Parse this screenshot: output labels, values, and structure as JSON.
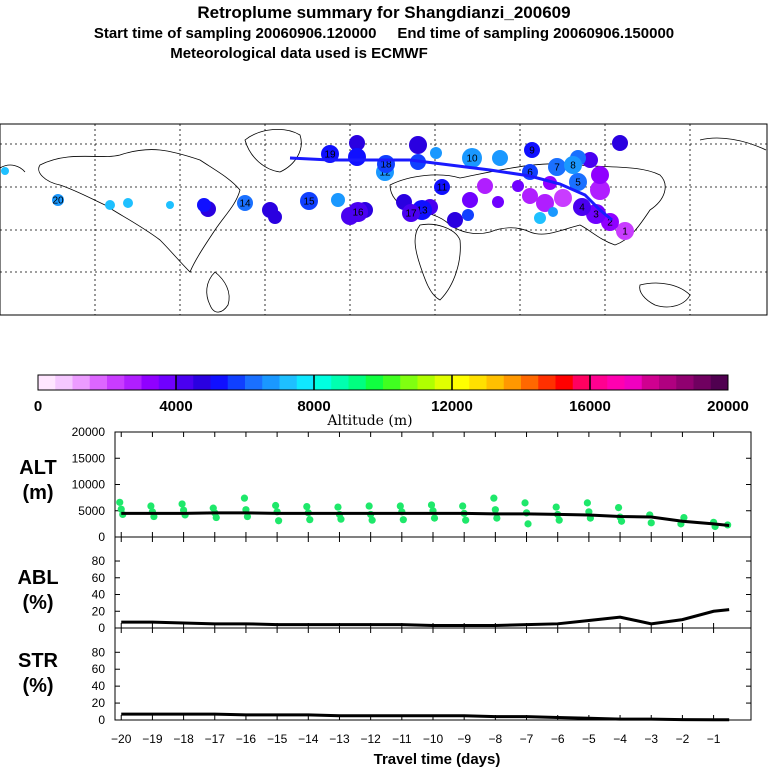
{
  "header": {
    "title": "Retroplume summary for Shangdianzi_200609",
    "sampling_line": "Start time of sampling 20060906.120000     End time of sampling 20060906.150000",
    "met_line": "Meteorological data used is ECMWF"
  },
  "colorbar": {
    "ticks": [
      "0",
      "4000",
      "8000",
      "12000",
      "16000",
      "20000"
    ],
    "label": "Altitude (m)",
    "range": [
      0,
      20000
    ],
    "colors": [
      "#ffe6ff",
      "#f5c8ff",
      "#ec9cff",
      "#dd66ff",
      "#c93cff",
      "#b01eff",
      "#9000ff",
      "#7000ff",
      "#4a00f0",
      "#2a00e0",
      "#1010ff",
      "#1040ff",
      "#1a70ff",
      "#1a98ff",
      "#1ec0ff",
      "#10e8ff",
      "#00ffe0",
      "#00ffb0",
      "#00ff80",
      "#10ff40",
      "#40ff20",
      "#80ff10",
      "#b0ff00",
      "#e0ff00",
      "#ffff00",
      "#ffe000",
      "#ffc000",
      "#ff9800",
      "#ff6800",
      "#ff3000",
      "#ff0000",
      "#ff0060",
      "#ff0090",
      "#ff00b0",
      "#f000c0",
      "#d00090",
      "#b00080",
      "#900070",
      "#700060",
      "#500050"
    ]
  },
  "map": {
    "labels": [
      {
        "n": "1",
        "alt": 2200
      },
      {
        "n": "2",
        "alt": 3000
      },
      {
        "n": "3",
        "alt": 3600
      },
      {
        "n": "4",
        "alt": 4000
      },
      {
        "n": "5",
        "alt": 6300
      },
      {
        "n": "6",
        "alt": 5600
      },
      {
        "n": "7",
        "alt": 6000
      },
      {
        "n": "8",
        "alt": 6500
      },
      {
        "n": "9",
        "alt": 5300
      },
      {
        "n": "10",
        "alt": 6900
      },
      {
        "n": "11",
        "alt": 5200
      },
      {
        "n": "12",
        "alt": 6600
      },
      {
        "n": "13",
        "alt": 5000
      },
      {
        "n": "14",
        "alt": 6400
      },
      {
        "n": "15",
        "alt": 5900
      },
      {
        "n": "16",
        "alt": 4200
      },
      {
        "n": "17",
        "alt": 4400
      },
      {
        "n": "18",
        "alt": 5800
      },
      {
        "n": "19",
        "alt": 5000
      },
      {
        "n": "20",
        "alt": 6800
      }
    ]
  },
  "chart_data": [
    {
      "type": "line",
      "name": "ALT",
      "ylabel": "ALT",
      "yunit": "(m)",
      "xlabel": "Travel time (days)",
      "xlim": [
        -20.2,
        0.2
      ],
      "ylim": [
        0,
        20000
      ],
      "yticks": [
        "20000",
        "15000",
        "10000",
        "5000",
        "0"
      ],
      "xticks": [
        "−20",
        "−19",
        "−18",
        "−17",
        "−16",
        "−15",
        "−14",
        "−13",
        "−12",
        "−11",
        "−10",
        "−9",
        "−8",
        "−7",
        "−6",
        "−5",
        "−4",
        "−3",
        "−2",
        "−1"
      ],
      "line": {
        "x": [
          -20,
          -19,
          -18,
          -17,
          -16,
          -15,
          -14,
          -13,
          -12,
          -11,
          -10,
          -9,
          -8,
          -7,
          -6,
          -5,
          -4,
          -3,
          -2,
          -1,
          -0.5
        ],
        "y": [
          4500,
          4500,
          4500,
          4600,
          4600,
          4500,
          4500,
          4500,
          4500,
          4500,
          4500,
          4500,
          4400,
          4400,
          4300,
          4200,
          3900,
          3800,
          3000,
          2500,
          2200
        ]
      },
      "points": {
        "color": "#1ee86a",
        "x": [
          -20,
          -20,
          -20,
          -19,
          -19,
          -19,
          -18,
          -18,
          -18,
          -17,
          -17,
          -17,
          -16,
          -16,
          -16,
          -15,
          -15,
          -15,
          -14,
          -14,
          -14,
          -13,
          -13,
          -13,
          -12,
          -12,
          -12,
          -11,
          -11,
          -11,
          -10,
          -10,
          -10,
          -9,
          -9,
          -9,
          -8,
          -8,
          -8,
          -7,
          -7,
          -7,
          -6,
          -6,
          -6,
          -5,
          -5,
          -5,
          -4,
          -4,
          -4,
          -3,
          -3,
          -2,
          -2,
          -1,
          -1,
          -0.5
        ],
        "y": [
          6600,
          5300,
          4300,
          5900,
          4800,
          3900,
          6300,
          5100,
          4200,
          5500,
          4600,
          3700,
          7400,
          5200,
          3900,
          6000,
          4800,
          3100,
          5800,
          4600,
          3300,
          5700,
          4300,
          3400,
          5900,
          4300,
          3200,
          5900,
          4800,
          3300,
          6100,
          5000,
          3600,
          5900,
          4500,
          3200,
          7400,
          5200,
          3600,
          6500,
          4600,
          2500,
          5700,
          4300,
          3200,
          6500,
          4800,
          3600,
          5600,
          3800,
          3000,
          4200,
          2700,
          3700,
          2500,
          2800,
          2000,
          2300
        ]
      }
    },
    {
      "type": "line",
      "name": "ABL",
      "ylabel": "ABL",
      "yunit": "(%)",
      "xlim": [
        -20.2,
        0.2
      ],
      "ylim": [
        0,
        100
      ],
      "yticks": [
        "80",
        "60",
        "40",
        "20",
        "0"
      ],
      "line": {
        "x": [
          -20,
          -19,
          -18,
          -17,
          -16,
          -15,
          -14,
          -13,
          -12,
          -11,
          -10,
          -9,
          -8,
          -7,
          -6,
          -5,
          -4,
          -3,
          -2,
          -1,
          -0.5
        ],
        "y": [
          7,
          7,
          6,
          5,
          5,
          4,
          4,
          4,
          4,
          4,
          3,
          3,
          3,
          4,
          5,
          9,
          13,
          5,
          10,
          20,
          22
        ]
      }
    },
    {
      "type": "line",
      "name": "STR",
      "ylabel": "STR",
      "yunit": "(%)",
      "xlim": [
        -20.2,
        0.2
      ],
      "ylim": [
        0,
        100
      ],
      "yticks": [
        "80",
        "60",
        "40",
        "20",
        "0"
      ],
      "line": {
        "x": [
          -20,
          -19,
          -18,
          -17,
          -16,
          -15,
          -14,
          -13,
          -12,
          -11,
          -10,
          -9,
          -8,
          -7,
          -6,
          -5,
          -4,
          -3,
          -2,
          -1,
          -0.5
        ],
        "y": [
          7,
          7,
          7,
          7,
          6,
          6,
          6,
          5,
          5,
          5,
          5,
          5,
          4,
          4,
          3,
          2,
          1,
          1,
          0.5,
          0.3,
          0.3
        ]
      }
    }
  ]
}
